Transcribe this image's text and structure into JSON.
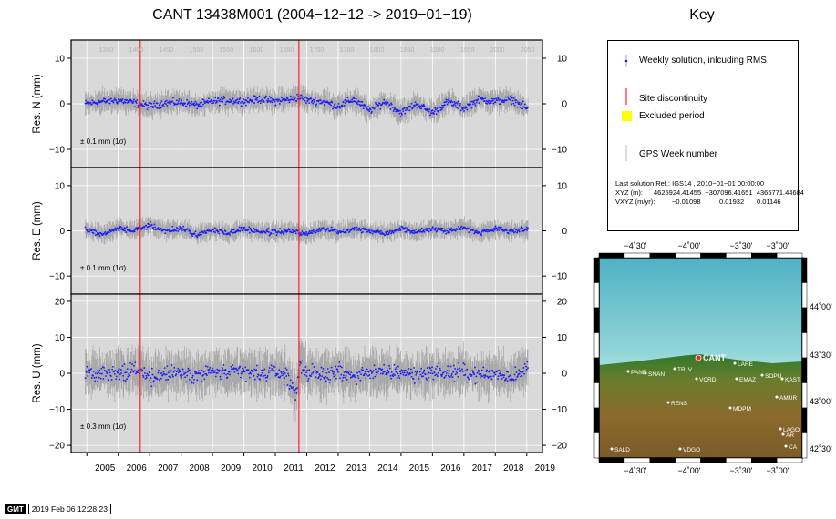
{
  "title": "CANT 13438M001 (2004−12−12 -> 2019−01−19)",
  "key": {
    "title": "Key",
    "items": [
      {
        "label": "Weekly solution, inlcuding RMS",
        "icon": "blue-dot-with-error-bar"
      },
      {
        "label": "Site discontinuity",
        "icon": "red-line"
      },
      {
        "label": "Excluded period",
        "icon": "yellow-square"
      },
      {
        "label": "GPS Week number",
        "icon": "grey-line"
      }
    ],
    "solution_ref": "Last solution Ref.: IGS14 , 2010−01−01 00:00:00",
    "xyz_label": "XYZ (m):",
    "xyz_values": "4625924.41455  −307096.41651  4365771.44684",
    "vxyz_label": "VXYZ (m/yr):",
    "vxyz_values": [
      "−0.01098",
      "0.01932",
      "0.01146"
    ]
  },
  "colors": {
    "panel_bg": "#d9d9d9",
    "data_dot": "#1a1aff",
    "error_bar": "#a6a6a6",
    "discontinuity": "#ff2222",
    "excluded": "#ffff00"
  },
  "chart_data": {
    "type": "scatter",
    "x_axis": {
      "range": [
        2004.5,
        2019.5
      ],
      "tick_labels": [
        "2005",
        "2006",
        "2007",
        "2008",
        "2009",
        "2010",
        "2011",
        "2012",
        "2013",
        "2014",
        "2015",
        "2016",
        "2017",
        "2018",
        "2019"
      ]
    },
    "gps_weeks": [
      "1350",
      "1400",
      "1450",
      "1500",
      "1550",
      "1600",
      "1650",
      "1700",
      "1750",
      "1800",
      "1850",
      "1900",
      "1950",
      "2000",
      "2050"
    ],
    "discontinuities": [
      2006.7,
      2011.75
    ],
    "data_start": 2004.95,
    "data_end": 2019.05,
    "panels": [
      {
        "ylabel": "Res. N (mm)",
        "ylim": [
          -14,
          14
        ],
        "yticks": [
          10,
          0,
          -10
        ],
        "rms_text": "± 0.1 mm (1σ)",
        "series_nodes": [
          [
            2005,
            0
          ],
          [
            2005.5,
            0.5
          ],
          [
            2006,
            0.8
          ],
          [
            2006.5,
            0.2
          ],
          [
            2007,
            -0.5
          ],
          [
            2007.5,
            0.2
          ],
          [
            2008,
            0.3
          ],
          [
            2008.5,
            -0.3
          ],
          [
            2009,
            0.5
          ],
          [
            2009.5,
            0.8
          ],
          [
            2010,
            0.5
          ],
          [
            2010.5,
            1.0
          ],
          [
            2011,
            0.6
          ],
          [
            2011.5,
            1.0
          ],
          [
            2011.75,
            1.5
          ],
          [
            2012,
            0.8
          ],
          [
            2012.5,
            0.5
          ],
          [
            2013,
            -0.5
          ],
          [
            2013.5,
            1.0
          ],
          [
            2014,
            -1.5
          ],
          [
            2014.5,
            0.5
          ],
          [
            2015,
            -2.0
          ],
          [
            2015.5,
            0.0
          ],
          [
            2016,
            -2.0
          ],
          [
            2016.5,
            0.5
          ],
          [
            2017,
            -1.0
          ],
          [
            2017.5,
            1.0
          ],
          [
            2018,
            0.5
          ],
          [
            2018.5,
            1.0
          ],
          [
            2019,
            -1.0
          ]
        ],
        "noise": 0.7,
        "err": 1.8
      },
      {
        "ylabel": "Res. E (mm)",
        "ylim": [
          -14,
          14
        ],
        "yticks": [
          10,
          0,
          -10
        ],
        "rms_text": "± 0.1 mm (1σ)",
        "series_nodes": [
          [
            2005,
            0.3
          ],
          [
            2005.5,
            -0.8
          ],
          [
            2006,
            0.5
          ],
          [
            2006.5,
            0.0
          ],
          [
            2007,
            1.2
          ],
          [
            2007.5,
            0.0
          ],
          [
            2008,
            0.5
          ],
          [
            2008.5,
            -0.8
          ],
          [
            2009,
            0.2
          ],
          [
            2009.5,
            -0.5
          ],
          [
            2010,
            0.5
          ],
          [
            2010.5,
            -0.2
          ],
          [
            2011,
            -0.3
          ],
          [
            2011.5,
            0.0
          ],
          [
            2012,
            -0.8
          ],
          [
            2012.5,
            0.5
          ],
          [
            2013,
            -0.2
          ],
          [
            2013.5,
            0.5
          ],
          [
            2014,
            0.0
          ],
          [
            2014.5,
            -0.5
          ],
          [
            2015,
            0.5
          ],
          [
            2015.5,
            -0.3
          ],
          [
            2016,
            0.5
          ],
          [
            2016.5,
            0.0
          ],
          [
            2017,
            0.8
          ],
          [
            2017.5,
            -0.5
          ],
          [
            2018,
            0.3
          ],
          [
            2018.5,
            0.0
          ],
          [
            2019,
            0.3
          ]
        ],
        "noise": 0.5,
        "err": 1.5
      },
      {
        "ylabel": "Res. U (mm)",
        "ylim": [
          -22,
          22
        ],
        "yticks": [
          20,
          10,
          0,
          -10,
          -20
        ],
        "rms_text": "± 0.3 mm (1σ)",
        "series_nodes": [
          [
            2005,
            0.5
          ],
          [
            2005.5,
            -0.5
          ],
          [
            2006,
            0.0
          ],
          [
            2006.5,
            1.0
          ],
          [
            2007,
            -1.0
          ],
          [
            2007.5,
            0.0
          ],
          [
            2008,
            0.5
          ],
          [
            2008.5,
            -0.5
          ],
          [
            2009,
            0.5
          ],
          [
            2009.5,
            0.0
          ],
          [
            2010,
            0.5
          ],
          [
            2010.5,
            -0.5
          ],
          [
            2011,
            0.5
          ],
          [
            2011.4,
            -1.0
          ],
          [
            2011.65,
            -6.0
          ],
          [
            2011.8,
            3.0
          ],
          [
            2012,
            0.0
          ],
          [
            2012.5,
            -0.5
          ],
          [
            2013,
            0.5
          ],
          [
            2013.5,
            -1.0
          ],
          [
            2014,
            0.5
          ],
          [
            2014.5,
            0.0
          ],
          [
            2015,
            0.5
          ],
          [
            2015.5,
            -0.5
          ],
          [
            2016,
            0.5
          ],
          [
            2016.5,
            0.0
          ],
          [
            2017,
            0.5
          ],
          [
            2017.5,
            -0.5
          ],
          [
            2018,
            0.0
          ],
          [
            2018.5,
            -1.0
          ],
          [
            2019,
            1.5
          ]
        ],
        "noise": 1.8,
        "err": 4.5
      }
    ]
  },
  "map": {
    "top_lon_labels": [
      "−4˚30'",
      "−4˚00'",
      "−3˚30'",
      "−3˚00'"
    ],
    "bottom_lon_labels": [
      "−4˚30'",
      "−4˚00'",
      "−3˚30'",
      "−3˚00'"
    ],
    "lat_labels": [
      "44˚00'",
      "43˚30'",
      "43˚00'",
      "42˚30'"
    ],
    "sites": [
      {
        "name": "CANT",
        "highlight": true
      },
      {
        "name": "LARE"
      },
      {
        "name": "PANE"
      },
      {
        "name": "SNAN"
      },
      {
        "name": "TRLV"
      },
      {
        "name": "VCRD"
      },
      {
        "name": "EMAZ"
      },
      {
        "name": "SOPU"
      },
      {
        "name": "KAST"
      },
      {
        "name": "AMUR"
      },
      {
        "name": "RENS"
      },
      {
        "name": "MDPM"
      },
      {
        "name": "LAGO"
      },
      {
        "name": "AR"
      },
      {
        "name": "CA"
      },
      {
        "name": "SALD"
      },
      {
        "name": "VDGO"
      }
    ]
  },
  "footer": {
    "logo": "GMT",
    "timestamp": "2019 Feb 06 12:28:23"
  }
}
